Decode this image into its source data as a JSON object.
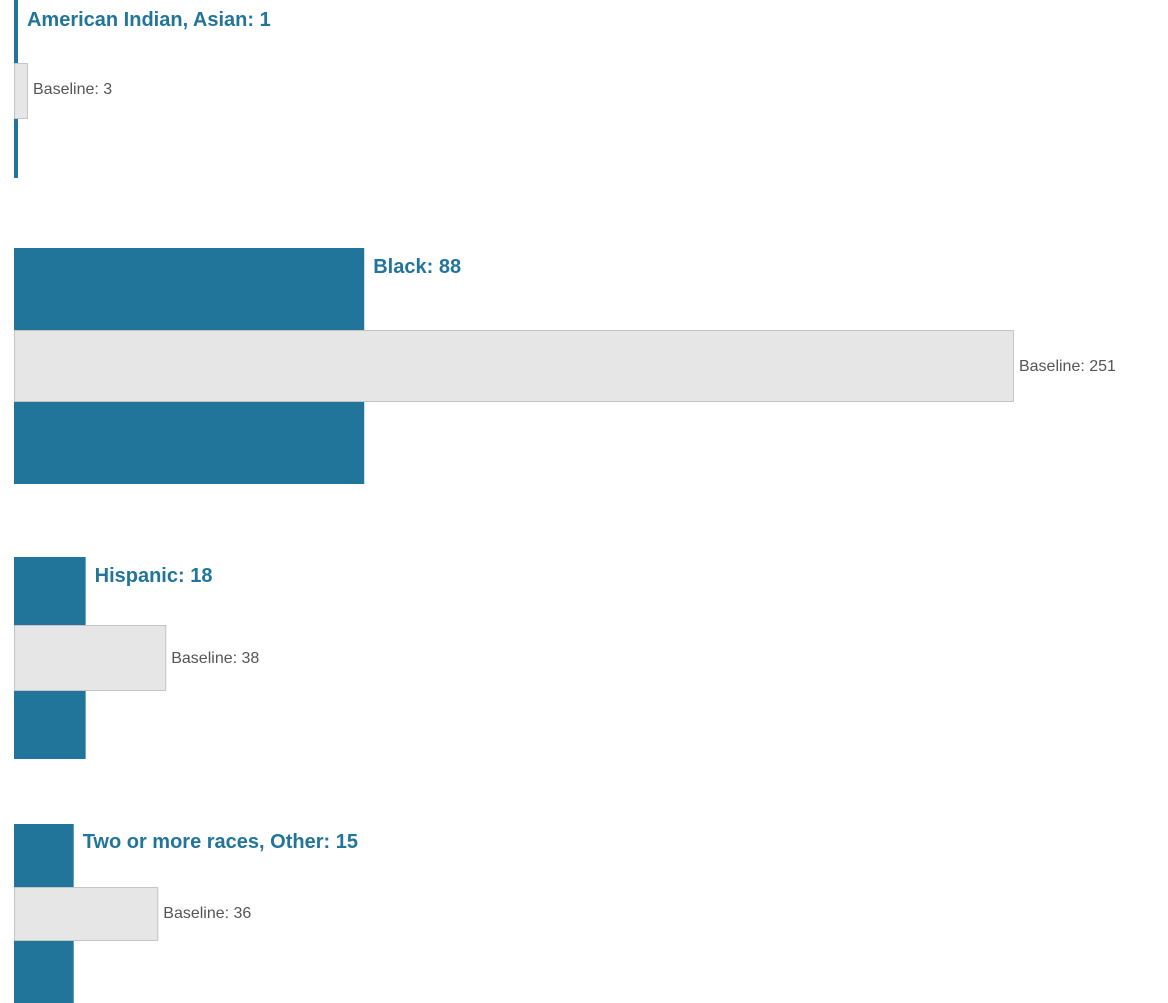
{
  "chart_data": {
    "type": "bar",
    "orientation": "horizontal",
    "colors": {
      "main": "#21759b",
      "baseline": "#e6e6e6",
      "baseline_border": "#c4c4c4",
      "baseline_text": "#555555"
    },
    "categories": [
      "American Indian, Asian",
      "Black",
      "Hispanic",
      "Two or more races, Other"
    ],
    "series": [
      {
        "values": [
          1,
          88,
          18,
          15
        ]
      },
      {
        "name": "Baseline",
        "values": [
          3,
          251,
          38,
          36
        ]
      }
    ],
    "labels": {
      "main": [
        "American Indian, Asian: 1",
        "Black: 88",
        "Hispanic: 18",
        "Two or more races, Other: 15"
      ],
      "baseline": [
        "Baseline: 3",
        "Baseline: 251",
        "Baseline: 38",
        "Baseline: 36"
      ]
    }
  }
}
